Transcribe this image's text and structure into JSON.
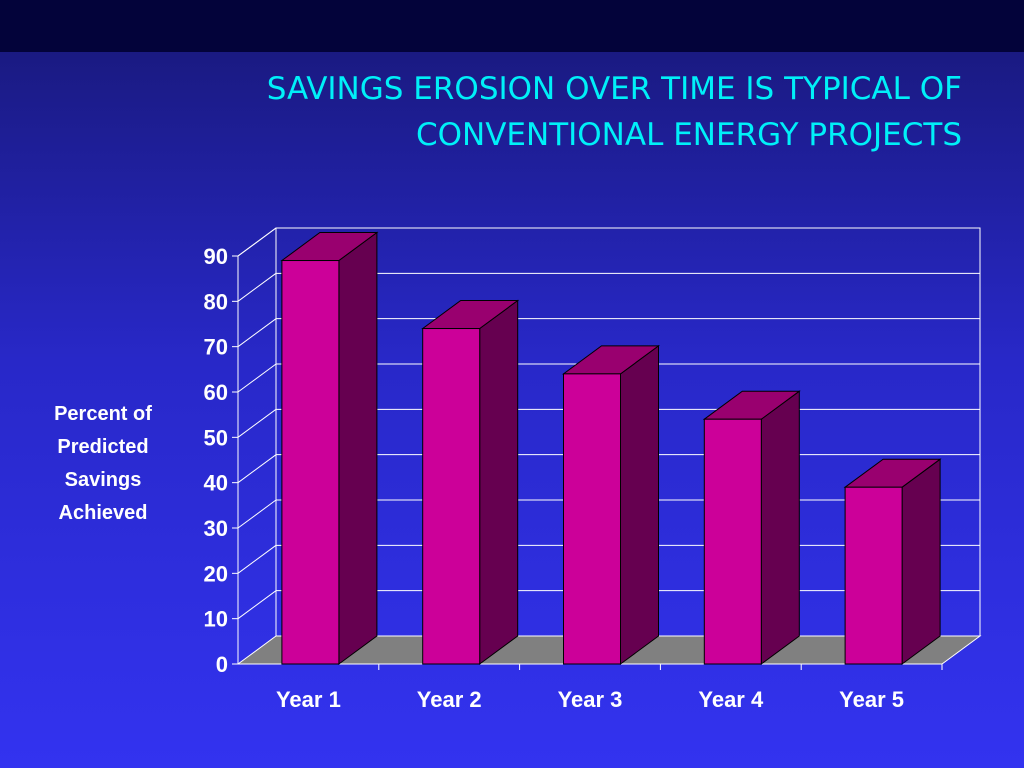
{
  "slide": {
    "title_line1": "SAVINGS EROSION OVER TIME IS TYPICAL OF",
    "title_line2": "CONVENTIONAL ENERGY PROJECTS"
  },
  "colors": {
    "bar_front": "#cc0099",
    "bar_side": "#660050",
    "bar_top": "#99006f",
    "floor": "#808080",
    "title": "#00f0f8"
  },
  "chart_data": {
    "type": "bar",
    "style": "3d",
    "title": "",
    "xlabel": "",
    "ylabel": "Percent of Predicted Savings Achieved",
    "ylabel_lines": [
      "Percent of",
      "Predicted",
      "Savings",
      "Achieved"
    ],
    "categories": [
      "Year 1",
      "Year 2",
      "Year 3",
      "Year 4",
      "Year 5"
    ],
    "values": [
      89,
      74,
      64,
      54,
      39
    ],
    "ylim": [
      0,
      90
    ],
    "yticks": [
      0,
      10,
      20,
      30,
      40,
      50,
      60,
      70,
      80,
      90
    ],
    "grid": true,
    "legend": "none"
  }
}
